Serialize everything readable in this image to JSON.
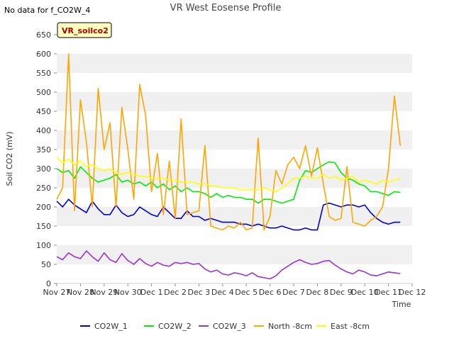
{
  "header": {
    "nodata_note": "No data for f_CO2W_4"
  },
  "chart_data": {
    "type": "line",
    "title": "VR West Eosense Profile",
    "xlabel": "Time",
    "ylabel": "Soil CO2 (mV)",
    "ylim": [
      0,
      650
    ],
    "y_ticks": [
      0,
      50,
      100,
      150,
      200,
      250,
      300,
      350,
      400,
      450,
      500,
      550,
      600,
      650
    ],
    "x_tick_labels": [
      "Nov 27",
      "Nov 28",
      "Nov 29",
      "Nov 30",
      "Dec 1",
      "Dec 2",
      "Dec 3",
      "Dec 4",
      "Dec 5",
      "Dec 6",
      "Dec 7",
      "Dec 8",
      "Dec 9",
      "Dec 10",
      "Dec 11",
      "Dec 12"
    ],
    "x_range_days": [
      0,
      15
    ],
    "grid": "horizontal alternating bands",
    "legend_placement": "bottom",
    "site_tag": "VR_soilco2",
    "x": [
      0.0,
      0.25,
      0.5,
      0.75,
      1.0,
      1.25,
      1.5,
      1.75,
      2.0,
      2.25,
      2.5,
      2.75,
      3.0,
      3.25,
      3.5,
      3.75,
      4.0,
      4.25,
      4.5,
      4.75,
      5.0,
      5.25,
      5.5,
      5.75,
      6.0,
      6.25,
      6.5,
      6.75,
      7.0,
      7.25,
      7.5,
      7.75,
      8.0,
      8.25,
      8.5,
      8.75,
      9.0,
      9.25,
      9.5,
      9.75,
      10.0,
      10.25,
      10.5,
      10.75,
      11.0,
      11.25,
      11.5,
      11.75,
      12.0,
      12.25,
      12.5,
      12.75,
      13.0,
      13.25,
      13.5,
      13.75,
      14.0,
      14.25,
      14.5
    ],
    "series": [
      {
        "name": "CO2W_1",
        "color": "#0000cc",
        "values": [
          215,
          200,
          220,
          205,
          195,
          185,
          215,
          195,
          180,
          180,
          205,
          185,
          175,
          180,
          200,
          190,
          180,
          175,
          200,
          185,
          170,
          170,
          190,
          175,
          175,
          165,
          170,
          165,
          160,
          160,
          160,
          155,
          155,
          150,
          155,
          150,
          145,
          145,
          150,
          145,
          140,
          140,
          145,
          140,
          140,
          205,
          210,
          205,
          200,
          205,
          205,
          200,
          205,
          185,
          170,
          160,
          155,
          160,
          160
        ]
      },
      {
        "name": "CO2W_2",
        "color": "#00ee00",
        "values": [
          300,
          290,
          295,
          275,
          305,
          290,
          275,
          265,
          270,
          275,
          285,
          265,
          270,
          260,
          265,
          255,
          265,
          250,
          260,
          245,
          255,
          240,
          250,
          240,
          240,
          235,
          225,
          235,
          225,
          230,
          225,
          225,
          220,
          220,
          210,
          220,
          220,
          215,
          210,
          215,
          220,
          270,
          295,
          290,
          300,
          310,
          318,
          315,
          290,
          275,
          270,
          260,
          255,
          240,
          240,
          235,
          230,
          240,
          238
        ]
      },
      {
        "name": "CO2W_3",
        "color": "#9933cc",
        "values": [
          70,
          62,
          80,
          70,
          65,
          85,
          70,
          58,
          80,
          62,
          55,
          78,
          60,
          50,
          65,
          52,
          45,
          55,
          48,
          45,
          55,
          52,
          55,
          50,
          52,
          38,
          30,
          35,
          25,
          22,
          28,
          25,
          20,
          28,
          18,
          15,
          12,
          20,
          35,
          45,
          55,
          62,
          55,
          50,
          52,
          58,
          60,
          48,
          38,
          30,
          25,
          35,
          30,
          22,
          20,
          25,
          30,
          28,
          26
        ]
      },
      {
        "name": "North -8cm",
        "color": "#ffa500",
        "values": [
          220,
          250,
          600,
          190,
          480,
          370,
          200,
          510,
          350,
          420,
          200,
          460,
          350,
          220,
          520,
          440,
          240,
          340,
          180,
          320,
          170,
          430,
          180,
          185,
          190,
          360,
          150,
          145,
          140,
          150,
          145,
          160,
          140,
          145,
          380,
          140,
          175,
          295,
          260,
          310,
          330,
          300,
          360,
          280,
          355,
          260,
          175,
          165,
          170,
          305,
          160,
          155,
          150,
          165,
          175,
          200,
          300,
          490,
          360
        ]
      },
      {
        "name": "East -8cm",
        "color": "#ffff00",
        "values": [
          330,
          315,
          325,
          310,
          320,
          305,
          310,
          300,
          295,
          300,
          290,
          285,
          290,
          285,
          280,
          280,
          275,
          275,
          275,
          270,
          270,
          265,
          265,
          265,
          260,
          260,
          255,
          255,
          250,
          250,
          250,
          245,
          245,
          245,
          245,
          250,
          245,
          240,
          250,
          260,
          275,
          275,
          280,
          275,
          275,
          285,
          275,
          280,
          270,
          275,
          280,
          265,
          270,
          265,
          260,
          270,
          265,
          270,
          275
        ]
      }
    ]
  }
}
